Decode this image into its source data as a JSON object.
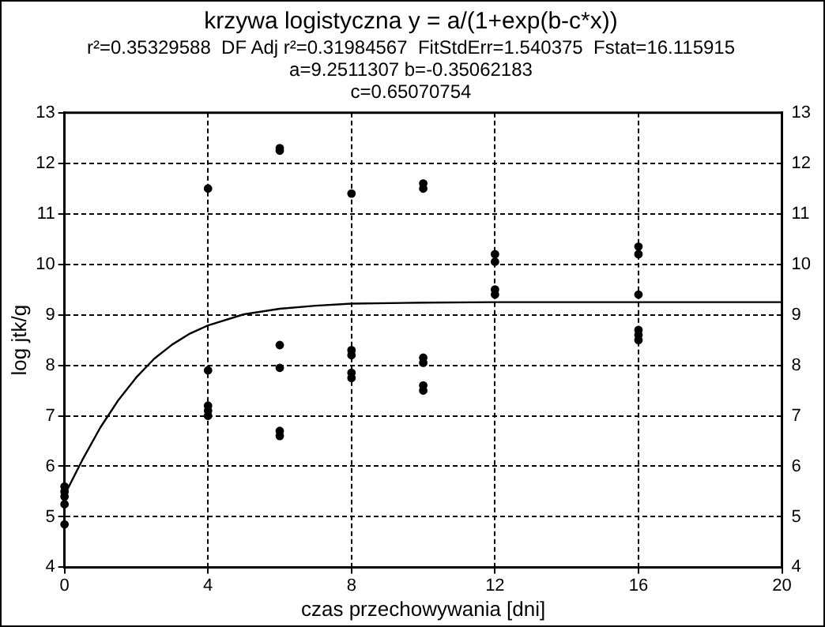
{
  "chart_data": {
    "type": "scatter",
    "title": "krzywa logistyczna y = a/(1+exp(b-c*x))",
    "subtitle": "r²=0.35329588  DF Adj r²=0.31984567  FitStdErr=1.540375  Fstat=16.115915\na=9.2511307 b=-0.35062183\nc=0.65070754",
    "xlabel": "czas przechowywania [dni]",
    "ylabel": "log jtk/g",
    "xlim": [
      0,
      20
    ],
    "xticks": [
      0,
      4,
      8,
      12,
      16,
      20
    ],
    "ylim": [
      4,
      13
    ],
    "yticks": [
      4,
      5,
      6,
      7,
      8,
      9,
      10,
      11,
      12,
      13
    ],
    "y2lim": [
      4,
      13
    ],
    "y2ticks": [
      4,
      5,
      6,
      7,
      8,
      9,
      10,
      11,
      12,
      13
    ],
    "grid": true,
    "legend": false,
    "marker": "circle",
    "series": [
      {
        "color": "#000000",
        "x": [
          0,
          0,
          0,
          0,
          0,
          4,
          4,
          4,
          4,
          4,
          6,
          6,
          6,
          6,
          6,
          6,
          8,
          8,
          8,
          8,
          8,
          10,
          10,
          10,
          10,
          10,
          10,
          12,
          12,
          12,
          12,
          16,
          16,
          16,
          16,
          16,
          16
        ],
        "values": [
          5.6,
          5.5,
          5.4,
          5.25,
          4.85,
          11.5,
          7.9,
          7.2,
          7.1,
          7.0,
          12.3,
          12.25,
          8.4,
          7.95,
          6.7,
          6.6,
          11.4,
          8.3,
          8.2,
          7.85,
          7.75,
          11.6,
          11.5,
          8.15,
          8.05,
          7.6,
          7.5,
          10.2,
          10.05,
          9.5,
          9.4,
          10.35,
          10.2,
          9.4,
          8.7,
          8.6,
          8.5
        ]
      },
      {
        "type": "line",
        "color": "#000000",
        "marker": "none",
        "x": [
          0,
          0.5,
          1,
          1.5,
          2,
          2.5,
          3,
          3.5,
          4,
          5,
          6,
          7,
          8,
          10,
          12,
          16,
          20
        ],
        "values": [
          5.43,
          6.13,
          6.77,
          7.31,
          7.76,
          8.13,
          8.41,
          8.63,
          8.79,
          9.01,
          9.12,
          9.18,
          9.22,
          9.24,
          9.25,
          9.25,
          9.25
        ]
      }
    ]
  }
}
